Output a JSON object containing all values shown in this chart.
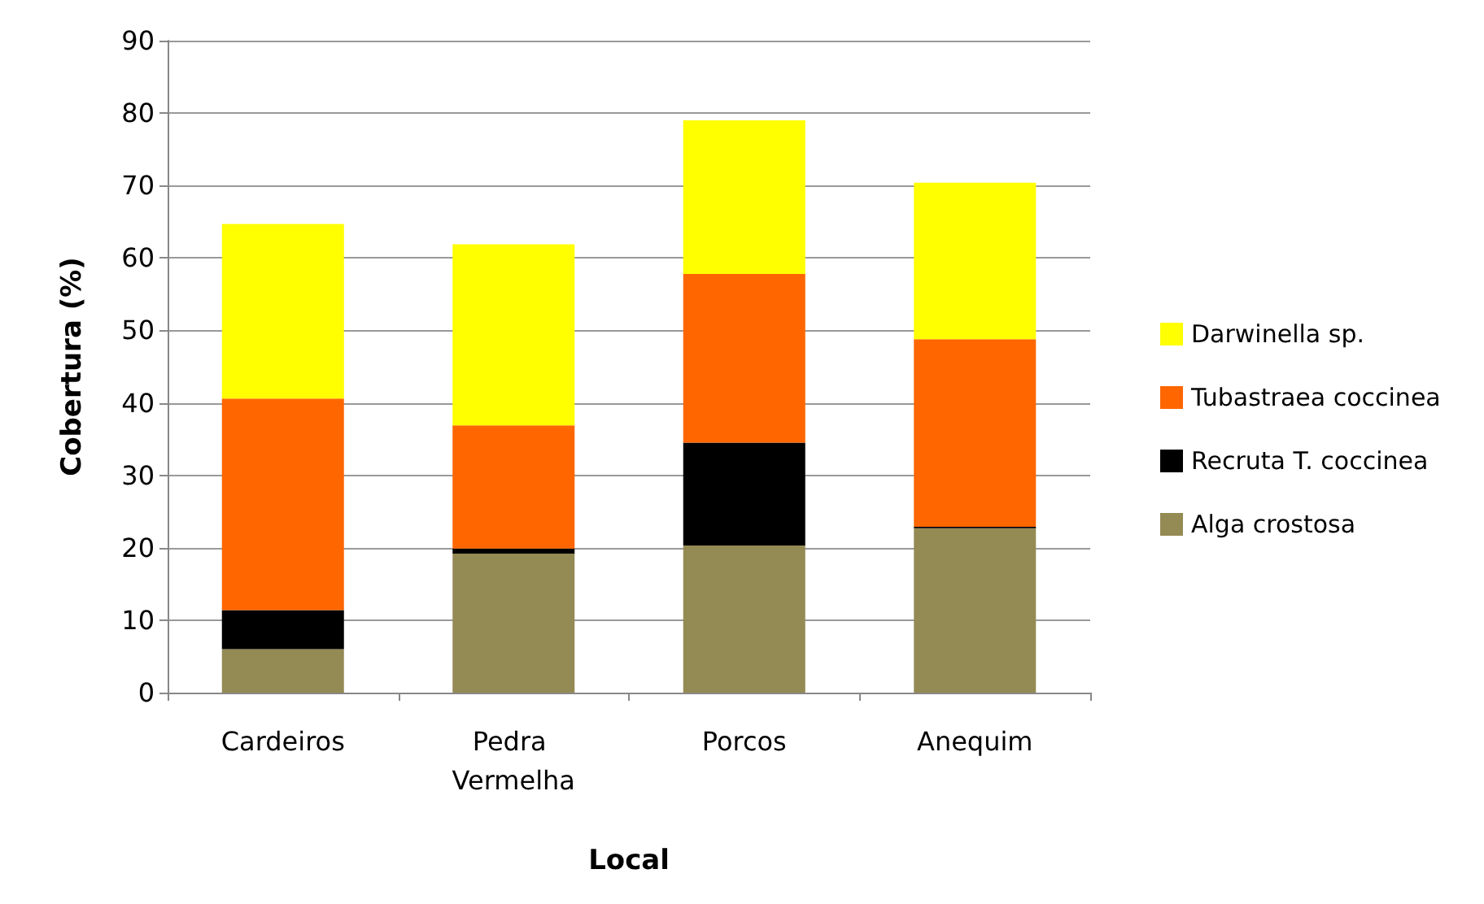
{
  "chart_data": {
    "type": "bar",
    "stacked": true,
    "xlabel": "Local",
    "ylabel": "Cobertura (%)",
    "categories": [
      "Cardeiros",
      "Pedra Vermelha",
      "Porcos",
      "Anequim"
    ],
    "series": [
      {
        "name": "Alga crostosa",
        "color": "#948a54",
        "values": [
          6.0,
          19.2,
          20.3,
          22.7
        ]
      },
      {
        "name": "Recruta T. coccinea",
        "color": "#000000",
        "values": [
          5.4,
          0.7,
          14.2,
          0.2
        ]
      },
      {
        "name": "Tubastraea coccinea",
        "color": "#ff6600",
        "values": [
          29.2,
          17.0,
          23.3,
          25.9
        ]
      },
      {
        "name": "Darwinella sp.",
        "color": "#ffff00",
        "values": [
          24.1,
          25.0,
          21.2,
          21.6
        ]
      }
    ],
    "ylim": [
      0,
      90
    ],
    "yticks": [
      0,
      10,
      20,
      30,
      40,
      50,
      60,
      70,
      80,
      90
    ],
    "grid": "y",
    "legend": "right"
  }
}
